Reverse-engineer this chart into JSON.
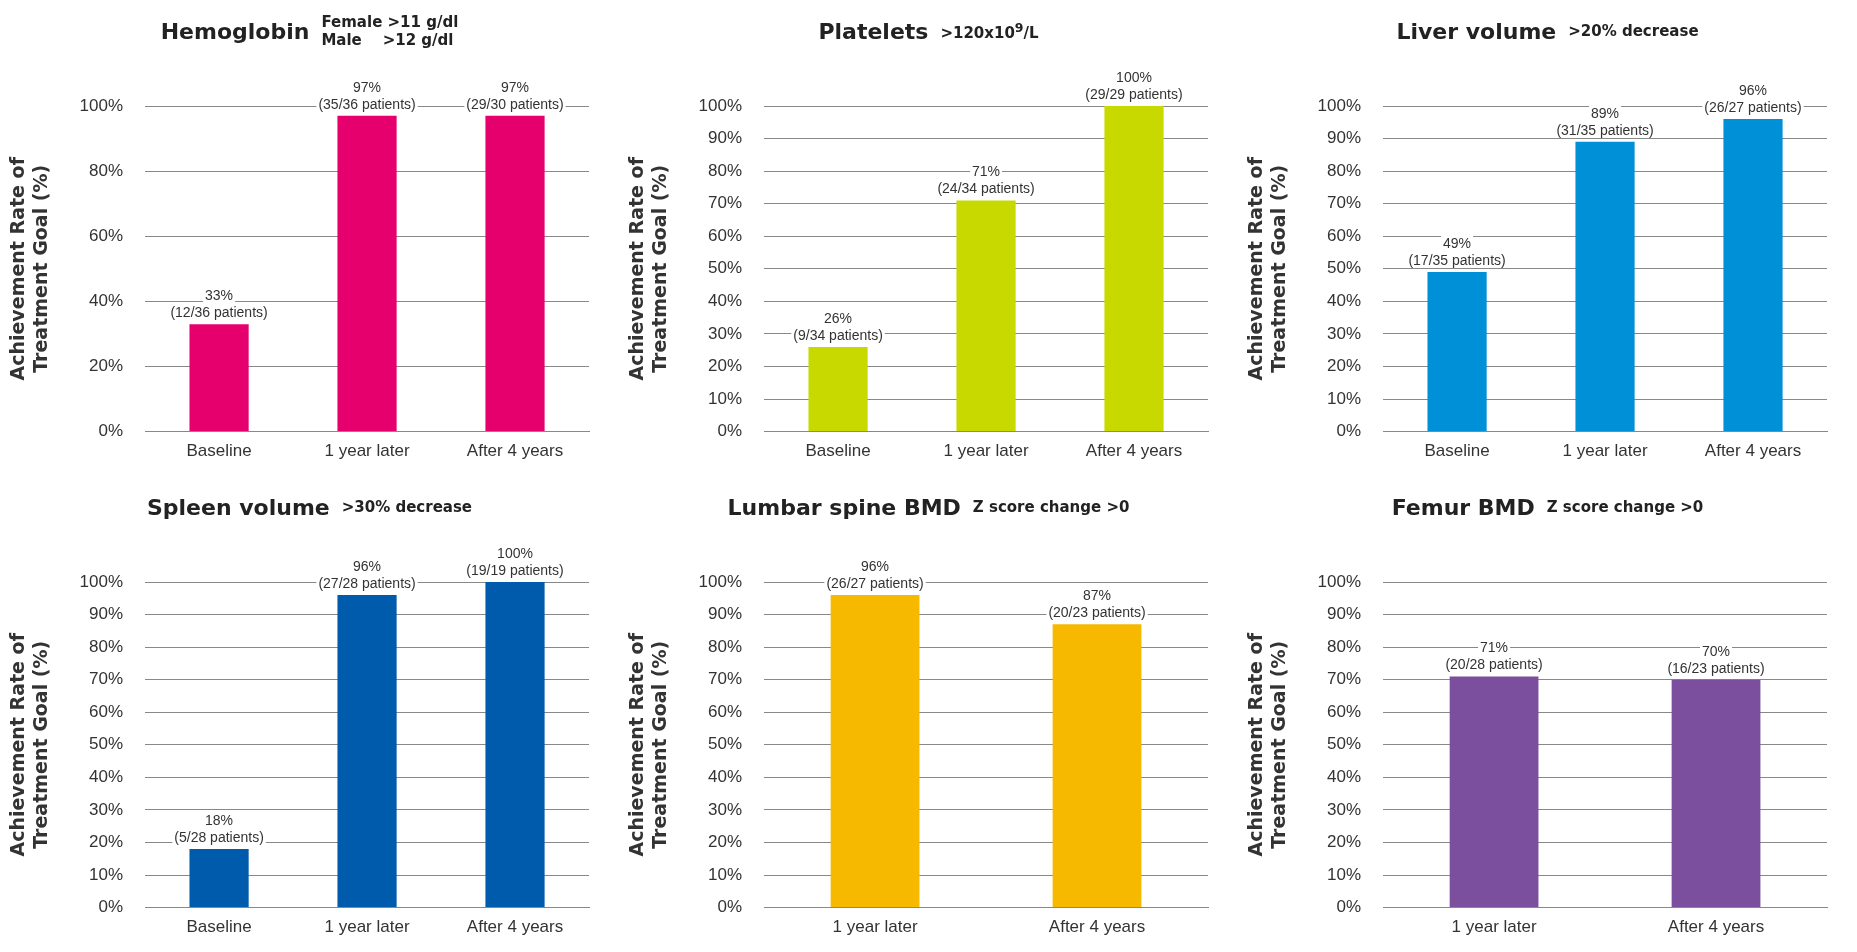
{
  "chart_data": [
    {
      "type": "bar",
      "title": "Hemoglobin",
      "subtitle": "Female >11 g/dl\nMale    >12 g/dl",
      "ylabel": "Achievement Rate of\nTreatment Goal (%)",
      "categories": [
        "Baseline",
        "1 year later",
        "After 4 years"
      ],
      "values": [
        33,
        97,
        97
      ],
      "value_labels": [
        "33%\n(12/36 patients)",
        "97%\n(35/36 patients)",
        "97%\n(29/30 patients)"
      ],
      "color": "#e6006e",
      "ylim": [
        0,
        100
      ],
      "yticks": [
        {
          "value": 0,
          "label": "0%"
        },
        {
          "value": 20,
          "label": "20%"
        },
        {
          "value": 40,
          "label": "40%"
        },
        {
          "value": 60,
          "label": "60%"
        },
        {
          "value": 80,
          "label": "80%"
        },
        {
          "value": 100,
          "label": "100%"
        }
      ],
      "grid": "y"
    },
    {
      "type": "bar",
      "title": "Platelets",
      "subtitle": ">120x10$^{9}$/L",
      "ylabel": "Achievement Rate of\nTreatment Goal (%)",
      "categories": [
        "Baseline",
        "1 year later",
        "After 4 years"
      ],
      "values": [
        26,
        71,
        100
      ],
      "value_labels": [
        "26%\n(9/34 patients)",
        "71%\n(24/34 patients)",
        "100%\n(29/29 patients)"
      ],
      "color": "#c8d900",
      "ylim": [
        0,
        100
      ],
      "yticks": [
        {
          "value": 0,
          "label": "0%"
        },
        {
          "value": 10,
          "label": "10%"
        },
        {
          "value": 20,
          "label": "20%"
        },
        {
          "value": 30,
          "label": "30%"
        },
        {
          "value": 40,
          "label": "40%"
        },
        {
          "value": 50,
          "label": "50%"
        },
        {
          "value": 60,
          "label": "60%"
        },
        {
          "value": 70,
          "label": "70%"
        },
        {
          "value": 80,
          "label": "80%"
        },
        {
          "value": 90,
          "label": "90%"
        },
        {
          "value": 100,
          "label": "100%"
        }
      ],
      "grid": "y"
    },
    {
      "type": "bar",
      "title": "Liver volume",
      "subtitle": ">20% decrease",
      "ylabel": "Achievement Rate of\nTreatment Goal (%)",
      "categories": [
        "Baseline",
        "1 year later",
        "After 4 years"
      ],
      "values": [
        49,
        89,
        96
      ],
      "value_labels": [
        "49%\n(17/35 patients)",
        "89%\n(31/35 patients)",
        "96%\n(26/27 patients)"
      ],
      "color": "#0090d8",
      "ylim": [
        0,
        100
      ],
      "yticks": [
        {
          "value": 0,
          "label": "0%"
        },
        {
          "value": 10,
          "label": "10%"
        },
        {
          "value": 20,
          "label": "20%"
        },
        {
          "value": 30,
          "label": "30%"
        },
        {
          "value": 40,
          "label": "40%"
        },
        {
          "value": 50,
          "label": "50%"
        },
        {
          "value": 60,
          "label": "60%"
        },
        {
          "value": 70,
          "label": "70%"
        },
        {
          "value": 80,
          "label": "80%"
        },
        {
          "value": 90,
          "label": "90%"
        },
        {
          "value": 100,
          "label": "100%"
        }
      ],
      "grid": "y"
    },
    {
      "type": "bar",
      "title": "Spleen volume",
      "subtitle": ">30% decrease",
      "ylabel": "Achievement Rate of\nTreatment Goal (%)",
      "categories": [
        "Baseline",
        "1 year later",
        "After 4 years"
      ],
      "values": [
        18,
        96,
        100
      ],
      "value_labels": [
        "18%\n(5/28 patients)",
        "96%\n(27/28 patients)",
        "100%\n(19/19 patients)"
      ],
      "color": "#005bac",
      "ylim": [
        0,
        100
      ],
      "yticks": [
        {
          "value": 0,
          "label": "0%"
        },
        {
          "value": 10,
          "label": "10%"
        },
        {
          "value": 20,
          "label": "20%"
        },
        {
          "value": 30,
          "label": "30%"
        },
        {
          "value": 40,
          "label": "40%"
        },
        {
          "value": 50,
          "label": "50%"
        },
        {
          "value": 60,
          "label": "60%"
        },
        {
          "value": 70,
          "label": "70%"
        },
        {
          "value": 80,
          "label": "80%"
        },
        {
          "value": 90,
          "label": "90%"
        },
        {
          "value": 100,
          "label": "100%"
        }
      ],
      "grid": "y"
    },
    {
      "type": "bar",
      "title": "Lumbar spine BMD",
      "subtitle": "Z score change >0",
      "ylabel": "Achievement Rate of\nTreatment Goal (%)",
      "categories": [
        "1 year later",
        "After 4 years"
      ],
      "values": [
        96,
        87
      ],
      "value_labels": [
        "96%\n(26/27 patients)",
        "87%\n(20/23 patients)"
      ],
      "color": "#f7b900",
      "ylim": [
        0,
        100
      ],
      "yticks": [
        {
          "value": 0,
          "label": "0%"
        },
        {
          "value": 10,
          "label": "10%"
        },
        {
          "value": 20,
          "label": "20%"
        },
        {
          "value": 30,
          "label": "30%"
        },
        {
          "value": 40,
          "label": "40%"
        },
        {
          "value": 50,
          "label": "50%"
        },
        {
          "value": 60,
          "label": "60%"
        },
        {
          "value": 70,
          "label": "70%"
        },
        {
          "value": 80,
          "label": "80%"
        },
        {
          "value": 90,
          "label": "90%"
        },
        {
          "value": 100,
          "label": "100%"
        }
      ],
      "grid": "y"
    },
    {
      "type": "bar",
      "title": "Femur BMD",
      "subtitle": "Z score change >0",
      "ylabel": "Achievement Rate of\nTreatment Goal (%)",
      "categories": [
        "1 year later",
        "After 4 years"
      ],
      "values": [
        71,
        70
      ],
      "value_labels": [
        "71%\n(20/28 patients)",
        "70%\n(16/23 patients)"
      ],
      "color": "#7b4f9e",
      "ylim": [
        0,
        100
      ],
      "yticks": [
        {
          "value": 0,
          "label": "0%"
        },
        {
          "value": 10,
          "label": "10%"
        },
        {
          "value": 20,
          "label": "20%"
        },
        {
          "value": 30,
          "label": "30%"
        },
        {
          "value": 40,
          "label": "40%"
        },
        {
          "value": 50,
          "label": "50%"
        },
        {
          "value": 60,
          "label": "60%"
        },
        {
          "value": 70,
          "label": "70%"
        },
        {
          "value": 80,
          "label": "80%"
        },
        {
          "value": 90,
          "label": "90%"
        },
        {
          "value": 100,
          "label": "100%"
        }
      ],
      "grid": "y"
    }
  ]
}
